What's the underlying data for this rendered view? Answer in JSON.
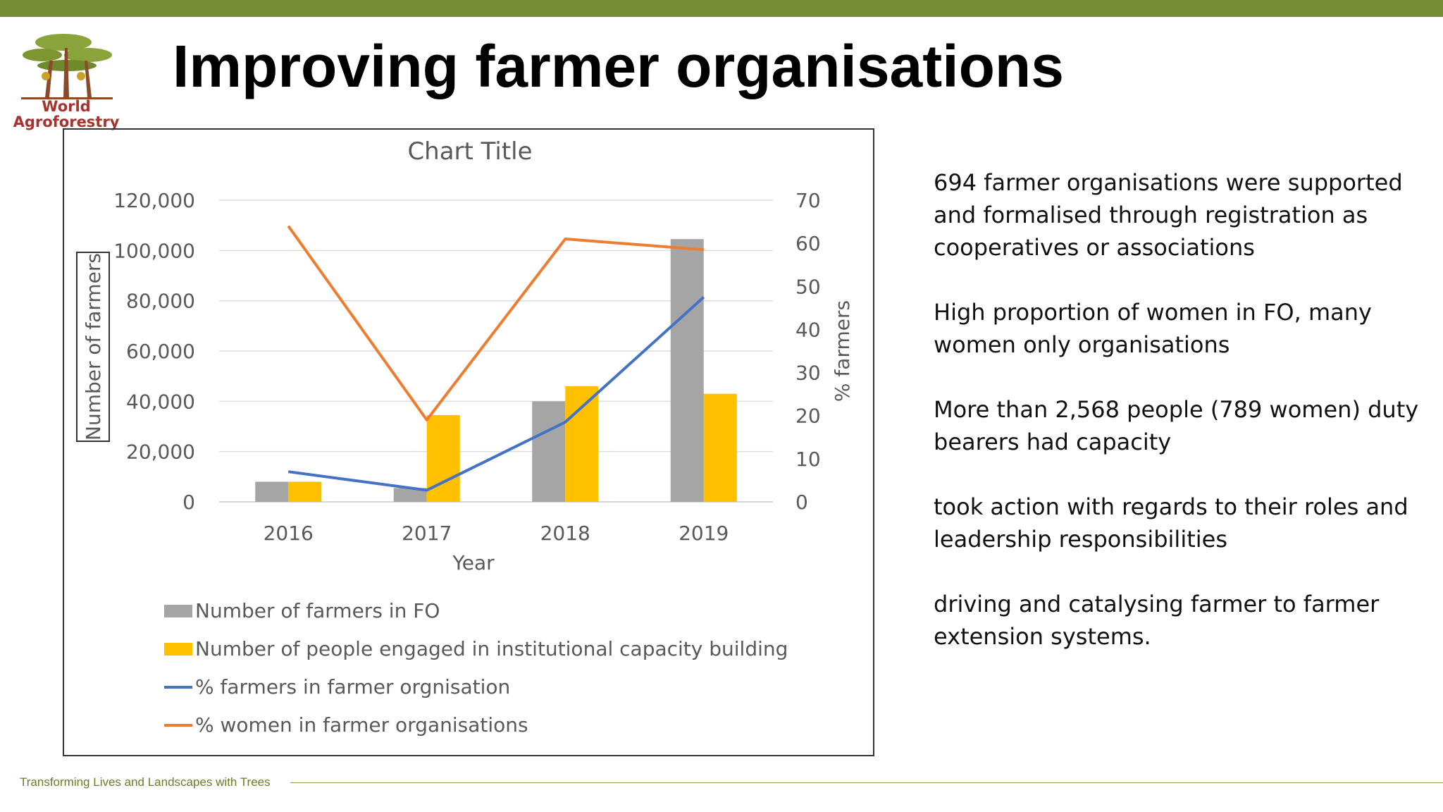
{
  "slide": {
    "title": "Improving farmer organisations",
    "logo": {
      "line1": "World",
      "line2": "Agroforestry"
    },
    "footer": "Transforming Lives and Landscapes with Trees",
    "bullets": [
      "694 farmer organisations were supported and formalised through registration as cooperatives or associations",
      "High proportion of women in FO, many women only organisations",
      "More than 2,568 people (789 women) duty bearers had capacity",
      "took action with regards to their roles and leadership responsibilities",
      "driving and catalysing farmer to farmer extension systems."
    ]
  },
  "chart_data": {
    "type": "bar",
    "title": "Chart Title",
    "xlabel": "Year",
    "ylabel": "Number of farmers",
    "y2label": "% farmers",
    "categories": [
      "2016",
      "2017",
      "2018",
      "2019"
    ],
    "ylim": [
      0,
      120000
    ],
    "y2lim": [
      0,
      70
    ],
    "y_ticks": [
      "0",
      "20,000",
      "40,000",
      "60,000",
      "80,000",
      "100,000",
      "120,000"
    ],
    "y2_ticks": [
      "0",
      "10",
      "20",
      "30",
      "40",
      "50",
      "60",
      "70"
    ],
    "grid": true,
    "legend_position": "bottom",
    "series": [
      {
        "name": "Number of farmers in FO",
        "kind": "bar",
        "axis": "left",
        "color": "#a5a5a5",
        "values": [
          8000,
          5500,
          40000,
          104500
        ]
      },
      {
        "name": "Number of people engaged in institutional capacity building",
        "kind": "bar",
        "axis": "left",
        "color": "#ffc000",
        "values": [
          8000,
          34500,
          46000,
          43000
        ]
      },
      {
        "name": "% farmers in farmer orgnisation",
        "kind": "line",
        "axis": "right",
        "color": "#4472c4",
        "values": [
          7,
          2.7,
          18.5,
          47.5
        ]
      },
      {
        "name": "% women in farmer organisations",
        "kind": "line",
        "axis": "right",
        "color": "#ed7d31",
        "values": [
          64,
          19,
          61,
          58.5
        ]
      }
    ]
  }
}
